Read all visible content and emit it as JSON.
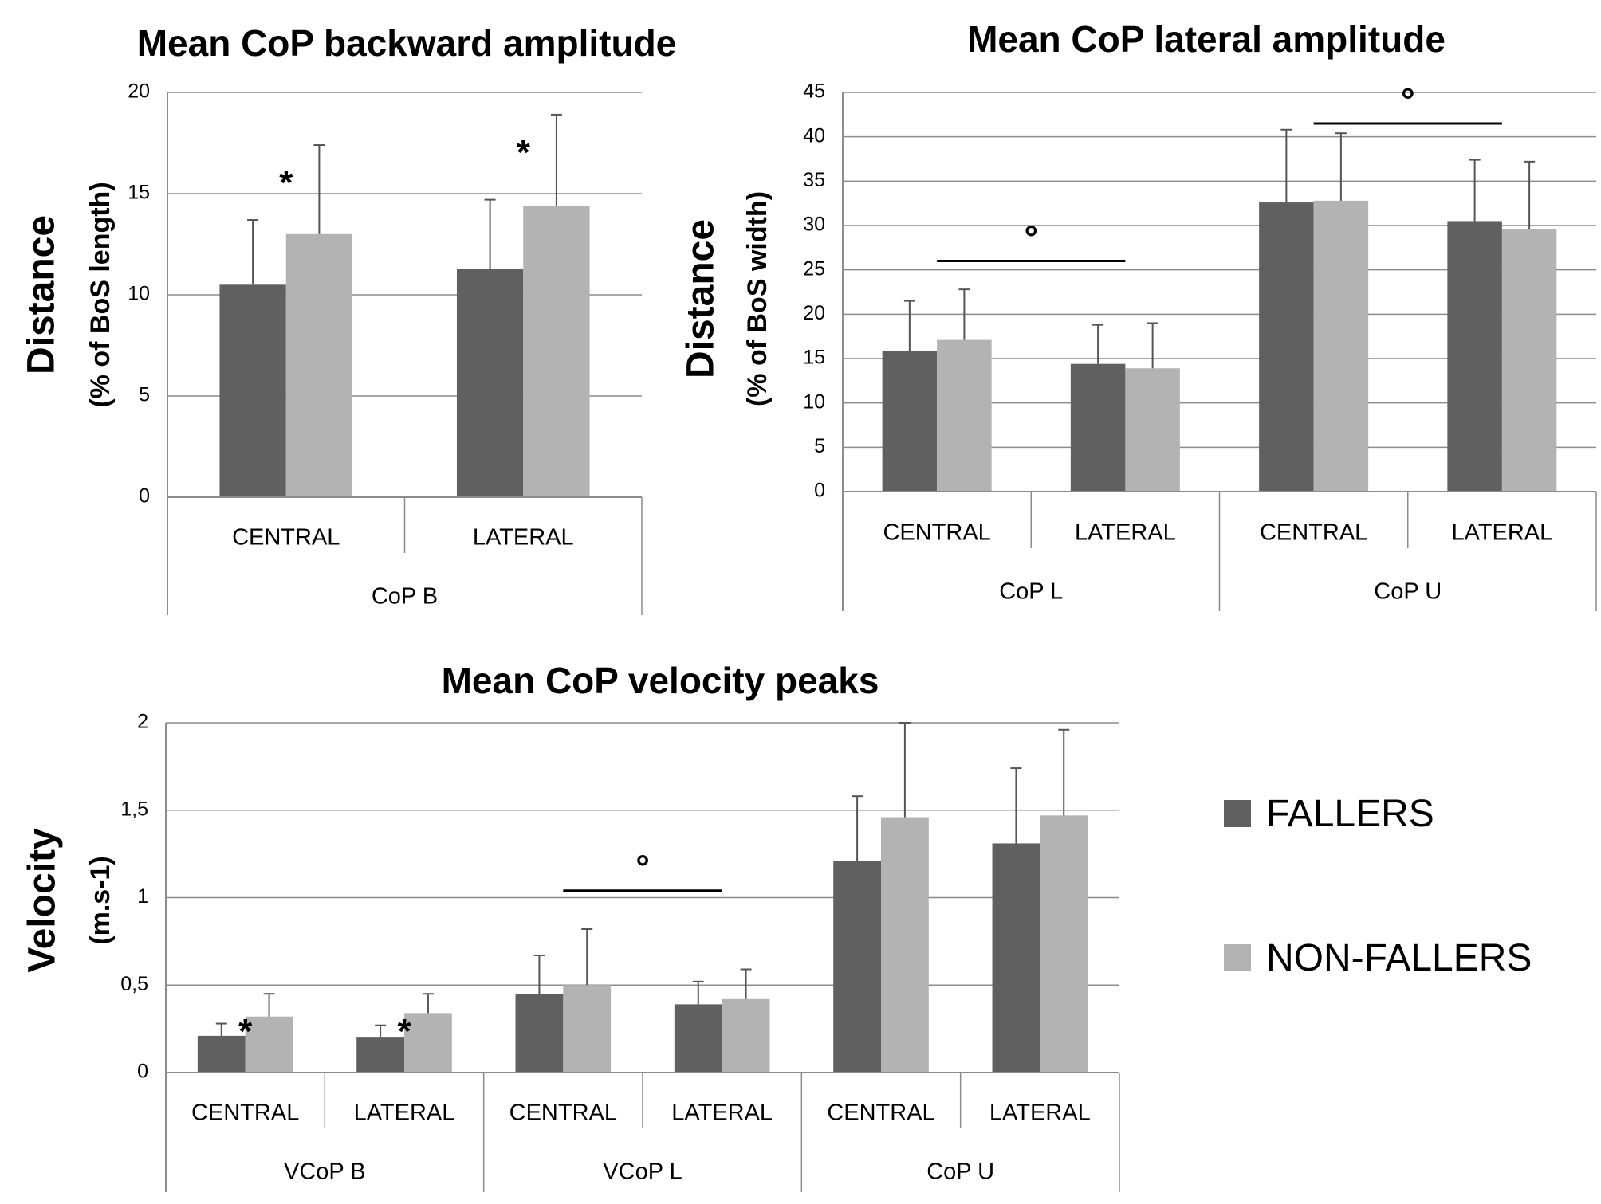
{
  "colors": {
    "fallers": "#606060",
    "non_fallers": "#b3b3b3",
    "grid": "#8c8c8c",
    "axis": "#8c8c8c",
    "text": "#000000",
    "error": "#555555"
  },
  "legend": {
    "entries": [
      "FALLERS",
      "NON-FALLERS"
    ]
  },
  "chart_data": [
    {
      "type": "bar",
      "title": "Mean CoP backward amplitude",
      "ylabel": "Distance",
      "ylabel_sub": "(% of BoS length)",
      "xlabel": "",
      "ylim": [
        0,
        20
      ],
      "yticks": [
        0,
        5,
        10,
        15,
        20
      ],
      "ytick_labels": [
        "0",
        "5",
        "10",
        "15",
        "20"
      ],
      "grid": true,
      "categories": [
        "CENTRAL",
        "LATERAL"
      ],
      "groups": [
        {
          "label": "CoP B",
          "span": 2
        }
      ],
      "series": [
        {
          "name": "FALLERS",
          "values": [
            10.5,
            11.3
          ],
          "errors": [
            3.2,
            3.4
          ]
        },
        {
          "name": "NON-FALLERS",
          "values": [
            13.0,
            14.4
          ],
          "errors": [
            4.4,
            4.5
          ]
        }
      ],
      "annotations": [
        {
          "text": "*",
          "category": 0,
          "series": 1
        },
        {
          "text": "*",
          "category": 1,
          "series": 1
        }
      ],
      "brackets": []
    },
    {
      "type": "bar",
      "title": "Mean CoP lateral amplitude",
      "ylabel": "Distance",
      "ylabel_sub": "(% of BoS width)",
      "xlabel": "",
      "ylim": [
        0,
        45
      ],
      "yticks": [
        0,
        5,
        10,
        15,
        20,
        25,
        30,
        35,
        40,
        45
      ],
      "ytick_labels": [
        "0",
        "5",
        "10",
        "15",
        "20",
        "25",
        "30",
        "35",
        "40",
        "45"
      ],
      "grid": true,
      "categories": [
        "CENTRAL",
        "LATERAL",
        "CENTRAL",
        "LATERAL"
      ],
      "groups": [
        {
          "label": "CoP  L",
          "span": 2
        },
        {
          "label": "CoP U",
          "span": 2
        }
      ],
      "series": [
        {
          "name": "FALLERS",
          "values": [
            15.9,
            14.4,
            32.6,
            30.5
          ],
          "errors": [
            5.6,
            4.4,
            8.2,
            6.9
          ]
        },
        {
          "name": "NON-FALLERS",
          "values": [
            17.1,
            13.9,
            32.8,
            29.6
          ],
          "errors": [
            5.7,
            5.1,
            7.6,
            7.6
          ]
        }
      ],
      "annotations": [],
      "brackets": [
        {
          "text": "°",
          "from": 0,
          "to": 1,
          "y": 26
        },
        {
          "text": "°",
          "from": 2,
          "to": 3,
          "y": 41.5
        }
      ]
    },
    {
      "type": "bar",
      "title": "Mean CoP velocity peaks",
      "ylabel": "Velocity",
      "ylabel_sub": "(m.s-1)",
      "xlabel": "",
      "ylim": [
        0,
        2
      ],
      "yticks": [
        0,
        0.5,
        1,
        1.5,
        2
      ],
      "ytick_labels": [
        "0",
        "0,5",
        "1",
        "1,5",
        "2"
      ],
      "grid": true,
      "categories": [
        "CENTRAL",
        "LATERAL",
        "CENTRAL",
        "LATERAL",
        "CENTRAL",
        "LATERAL"
      ],
      "groups": [
        {
          "label": "VCoP B",
          "span": 2
        },
        {
          "label": "VCoP L",
          "span": 2
        },
        {
          "label": "CoP U",
          "span": 2
        }
      ],
      "series": [
        {
          "name": "FALLERS",
          "values": [
            0.21,
            0.2,
            0.45,
            0.39,
            1.21,
            1.31
          ],
          "errors": [
            0.07,
            0.07,
            0.22,
            0.13,
            0.37,
            0.43
          ]
        },
        {
          "name": "NON-FALLERS",
          "values": [
            0.32,
            0.34,
            0.5,
            0.42,
            1.46,
            1.47
          ],
          "errors": [
            0.13,
            0.11,
            0.32,
            0.17,
            0.54,
            0.49
          ]
        }
      ],
      "annotations": [
        {
          "text": "*",
          "category": 0,
          "series": 1
        },
        {
          "text": "*",
          "category": 1,
          "series": 1
        }
      ],
      "brackets": [
        {
          "text": "°",
          "from": 2,
          "to": 3,
          "y": 1.04
        }
      ]
    }
  ]
}
